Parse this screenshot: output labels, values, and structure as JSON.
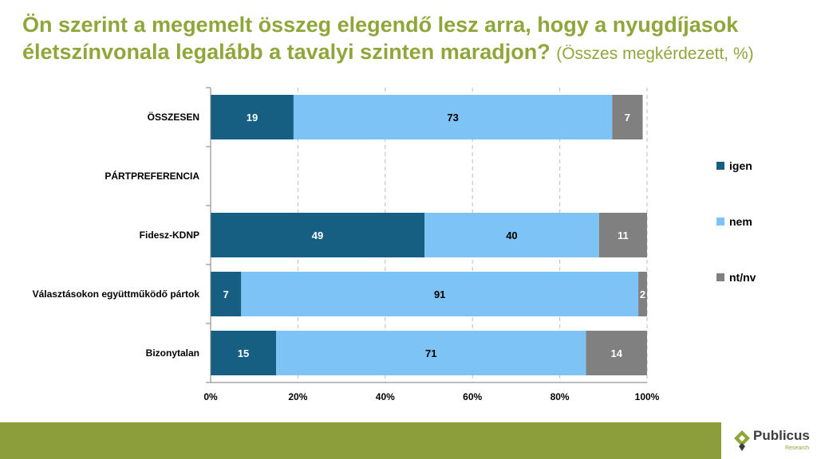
{
  "title": {
    "main": "Ön szerint a megemelt összeg elegendő lesz arra, hogy a nyugdíjasok életszínvonala legalább a tavalyi szinten maradjon?",
    "subtitle": "(Összes megkérdezett, %)"
  },
  "logo": {
    "name": "Publicus",
    "sub": "Research"
  },
  "colors": {
    "igen": "#165f82",
    "nem": "#7dc3f5",
    "ntnv": "#808080",
    "title": "#8fa63a",
    "footer": "#8c9e3c"
  },
  "chart_data": {
    "type": "bar",
    "orientation": "horizontal",
    "stacked": true,
    "title": "Ön szerint a megemelt összeg elegendő lesz arra, hogy a nyugdíjasok életszínvonala legalább a tavalyi szinten maradjon?",
    "subtitle": "(Összes megkérdezett, %)",
    "categories": [
      "ÖSSZESEN",
      "PÁRTPREFERENCIA",
      "Fidesz-KDNP",
      "Választásokon együttműködő pártok",
      "Bizonytalan"
    ],
    "series": [
      {
        "name": "igen",
        "values": [
          19,
          null,
          49,
          7,
          15
        ]
      },
      {
        "name": "nem",
        "values": [
          73,
          null,
          40,
          91,
          71
        ]
      },
      {
        "name": "nt/nv",
        "values": [
          7,
          null,
          11,
          2,
          14
        ]
      }
    ],
    "xlim": [
      0,
      100
    ],
    "xticks": [
      "0%",
      "20%",
      "40%",
      "60%",
      "80%",
      "100%"
    ],
    "grid": true,
    "legend_position": "right"
  }
}
